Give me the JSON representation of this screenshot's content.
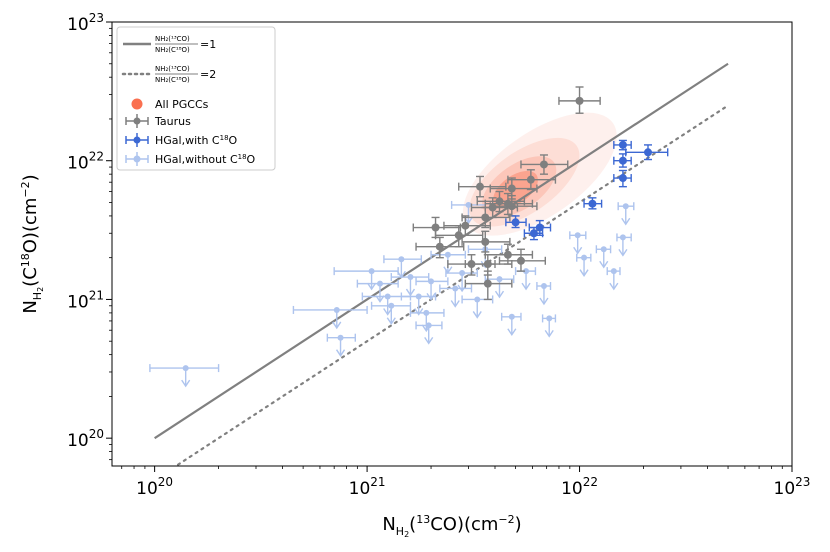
{
  "chart_data": {
    "type": "scatter",
    "x_scale": "log",
    "y_scale": "log",
    "xlim": [
      6.3e+19,
      1e+23
    ],
    "ylim": [
      6.3e+19,
      1e+23
    ],
    "x_ticks": [
      1e+20,
      1e+21,
      1e+22,
      1e+23
    ],
    "y_ticks": [
      1e+20,
      1e+21,
      1e+22,
      1e+23
    ],
    "x_tick_labels": [
      "10^20",
      "10^21",
      "10^22",
      "10^23"
    ],
    "y_tick_labels": [
      "10^20",
      "10^21",
      "10^22",
      "10^23"
    ],
    "xlabel": {
      "main": "N",
      "sub": "H",
      "subsub": "2",
      "rest": "(",
      "sup_iso": "13",
      "after_iso": "CO)(cm",
      "sup_exp": "−2",
      "end": ")"
    },
    "ylabel": {
      "main": "N",
      "sub": "H",
      "subsub": "2",
      "rest": "(C",
      "sup_iso": "18",
      "after_iso": "O)(cm",
      "sup_exp": "−2",
      "end": ")"
    },
    "legend_position": "upper-left",
    "legend": [
      {
        "id": "ratio1",
        "kind": "line-solid",
        "lhs_num": "N_H2(13CO)",
        "lhs_den": "N_H2(C18O)",
        "num_label": "NH₂(¹³CO)",
        "den_label": "NH₂(C¹⁸O)",
        "rhs": "=1"
      },
      {
        "id": "ratio2",
        "kind": "line-dotted",
        "lhs_num": "N_H2(13CO)",
        "lhs_den": "N_H2(C18O)",
        "num_label": "NH₂(¹³CO)",
        "den_label": "NH₂(C¹⁸O)",
        "rhs": "=2"
      },
      {
        "id": "pgcc",
        "kind": "kde",
        "label": "All PGCCs"
      },
      {
        "id": "taurus",
        "kind": "errorbar",
        "label": "Taurus"
      },
      {
        "id": "hgal_with",
        "kind": "errorbar",
        "label_main": "HGal,with C",
        "label_sup": "18",
        "label_end": "O"
      },
      {
        "id": "hgal_without",
        "kind": "upper-limit",
        "label_main": "HGal,without C",
        "label_sup": "18",
        "label_end": "O"
      }
    ],
    "lines": [
      {
        "name": "ratio1",
        "x": [
          1e+20,
          5e+22
        ],
        "y": [
          1e+20,
          5e+22
        ],
        "style": "solid",
        "color": "#808080"
      },
      {
        "name": "ratio2",
        "x": [
          1e+20,
          5e+22
        ],
        "y": [
          5e+19,
          2.5e+22
        ],
        "style": "dotted",
        "color": "#808080"
      }
    ],
    "series": [
      {
        "name": "taurus",
        "color": "#7f7f7f",
        "points": [
          {
            "x": 1e+22,
            "y": 2.7e+22,
            "xerr": [
              8e+21,
              1.25e+22
            ],
            "yerr": [
              2.2e+22,
              3.4e+22
            ]
          },
          {
            "x": 6.8e+21,
            "y": 9.4e+21,
            "xerr": [
              5.3e+21,
              8.8e+21
            ],
            "yerr": [
              8e+21,
              1.1e+22
            ]
          },
          {
            "x": 5.9e+21,
            "y": 7.3e+21,
            "xerr": [
              4.6e+21,
              7.7e+21
            ],
            "yerr": [
              6.2e+21,
              8.6e+21
            ]
          },
          {
            "x": 4.8e+21,
            "y": 6.3e+21,
            "xerr": [
              3.8e+21,
              6.3e+21
            ],
            "yerr": [
              5.3e+21,
              7.5e+21
            ]
          },
          {
            "x": 3.4e+21,
            "y": 6.5e+21,
            "xerr": [
              2.7e+21,
              4.5e+21
            ],
            "yerr": [
              5.5e+21,
              7.7e+21
            ]
          },
          {
            "x": 4.2e+21,
            "y": 5.1e+21,
            "xerr": [
              3.3e+21,
              5.5e+21
            ],
            "yerr": [
              4.3e+21,
              6e+21
            ]
          },
          {
            "x": 4.6e+21,
            "y": 4.9e+21,
            "xerr": [
              3.6e+21,
              6e+21
            ],
            "yerr": [
              4.1e+21,
              5.8e+21
            ]
          },
          {
            "x": 4.8e+21,
            "y": 4.7e+21,
            "xerr": [
              3.8e+21,
              6.3e+21
            ],
            "yerr": [
              4e+21,
              5.6e+21
            ]
          },
          {
            "x": 3.9e+21,
            "y": 4.6e+21,
            "xerr": [
              3.1e+21,
              5.1e+21
            ],
            "yerr": [
              3.9e+21,
              5.4e+21
            ]
          },
          {
            "x": 3.6e+21,
            "y": 3.9e+21,
            "xerr": [
              2.8e+21,
              4.7e+21
            ],
            "yerr": [
              3.3e+21,
              4.6e+21
            ]
          },
          {
            "x": 2.9e+21,
            "y": 3.4e+21,
            "xerr": [
              2.3e+21,
              3.8e+21
            ],
            "yerr": [
              2.9e+21,
              4e+21
            ]
          },
          {
            "x": 2.1e+21,
            "y": 3.3e+21,
            "xerr": [
              1.65e+21,
              2.75e+21
            ],
            "yerr": [
              2.8e+21,
              3.9e+21
            ]
          },
          {
            "x": 2.2e+21,
            "y": 2.4e+21,
            "xerr": [
              1.7e+21,
              2.85e+21
            ],
            "yerr": [
              2e+21,
              2.8e+21
            ]
          },
          {
            "x": 2.7e+21,
            "y": 2.9e+21,
            "xerr": [
              2.1e+21,
              3.5e+21
            ],
            "yerr": [
              2.4e+21,
              3.4e+21
            ]
          },
          {
            "x": 3.6e+21,
            "y": 2.6e+21,
            "xerr": [
              2.8e+21,
              4.7e+21
            ],
            "yerr": [
              2.2e+21,
              3.1e+21
            ]
          },
          {
            "x": 4.6e+21,
            "y": 2.1e+21,
            "xerr": [
              3.6e+21,
              6e+21
            ],
            "yerr": [
              1.8e+21,
              2.5e+21
            ]
          },
          {
            "x": 5.3e+21,
            "y": 1.9e+21,
            "xerr": [
              4.2e+21,
              6.9e+21
            ],
            "yerr": [
              1.6e+21,
              2.3e+21
            ]
          },
          {
            "x": 3.1e+21,
            "y": 1.8e+21,
            "xerr": [
              2.4e+21,
              4e+21
            ],
            "yerr": [
              1.5e+21,
              2.1e+21
            ]
          },
          {
            "x": 3.7e+21,
            "y": 1.8e+21,
            "xerr": [
              2.9e+21,
              4.8e+21
            ],
            "yerr": [
              1.5e+21,
              2.1e+21
            ]
          },
          {
            "x": 3.7e+21,
            "y": 1.3e+21,
            "xerr": [
              2.9e+21,
              4.8e+21
            ],
            "yerr": [
              1e+21,
              1.6e+21
            ]
          }
        ]
      },
      {
        "name": "hgal_with",
        "color": "#3c68d3",
        "points": [
          {
            "x": 1.6e+22,
            "y": 1.3e+22,
            "xerr": [
              1.45e+22,
              1.75e+22
            ],
            "yerr": [
              1.2e+22,
              1.4e+22
            ]
          },
          {
            "x": 2.1e+22,
            "y": 1.15e+22,
            "xerr": [
              1.65e+22,
              2.6e+22
            ],
            "yerr": [
              1.02e+22,
              1.3e+22
            ]
          },
          {
            "x": 1.6e+22,
            "y": 1e+22,
            "xerr": [
              1.45e+22,
              1.75e+22
            ],
            "yerr": [
              9e+21,
              1.12e+22
            ]
          },
          {
            "x": 1.6e+22,
            "y": 7.5e+21,
            "xerr": [
              1.45e+22,
              1.75e+22
            ],
            "yerr": [
              6.5e+21,
              8.5e+21
            ]
          },
          {
            "x": 1.15e+22,
            "y": 4.9e+21,
            "xerr": [
              1.05e+22,
              1.27e+22
            ],
            "yerr": [
              4.5e+21,
              5.4e+21
            ]
          },
          {
            "x": 6.5e+21,
            "y": 3.3e+21,
            "xerr": [
              5.8e+21,
              7.3e+21
            ],
            "yerr": [
              2.9e+21,
              3.7e+21
            ]
          },
          {
            "x": 6.1e+21,
            "y": 3e+21,
            "xerr": [
              5.5e+21,
              6.7e+21
            ],
            "yerr": [
              2.7e+21,
              3.3e+21
            ]
          },
          {
            "x": 5e+21,
            "y": 3.6e+21,
            "xerr": [
              4.5e+21,
              5.6e+21
            ],
            "yerr": [
              3.3e+21,
              4e+21
            ]
          }
        ]
      },
      {
        "name": "hgal_without",
        "color": "#aec4ee",
        "points": [
          {
            "x": 1.4e+20,
            "y": 3.2e+20,
            "xerr": [
              9.5e+19,
              2e+20
            ]
          },
          {
            "x": 7.5e+20,
            "y": 5.3e+20,
            "xerr": [
              6.5e+20,
              8.8e+20
            ]
          },
          {
            "x": 7.2e+20,
            "y": 8.4e+20,
            "xerr": [
              4.5e+20,
              1e+21
            ]
          },
          {
            "x": 1.05e+21,
            "y": 1.6e+21,
            "xerr": [
              7e+20,
              1.4e+21
            ]
          },
          {
            "x": 1.15e+21,
            "y": 1.3e+21,
            "xerr": [
              9e+20,
              1.4e+21
            ]
          },
          {
            "x": 1.25e+21,
            "y": 1.05e+21,
            "xerr": [
              9.5e+20,
              1.6e+21
            ]
          },
          {
            "x": 1.45e+21,
            "y": 1.95e+21,
            "xerr": [
              1.2e+21,
              1.8e+21
            ]
          },
          {
            "x": 1.3e+21,
            "y": 9e+20,
            "xerr": [
              1.05e+21,
              1.6e+21
            ]
          },
          {
            "x": 1.6e+21,
            "y": 1.45e+21,
            "xerr": [
              1.3e+21,
              1.95e+21
            ]
          },
          {
            "x": 1.75e+21,
            "y": 1.05e+21,
            "xerr": [
              1.45e+21,
              2.1e+21
            ]
          },
          {
            "x": 1.9e+21,
            "y": 8e+20,
            "xerr": [
              1.6e+21,
              2.3e+21
            ]
          },
          {
            "x": 1.95e+21,
            "y": 6.5e+20,
            "xerr": [
              1.7e+21,
              2.25e+21
            ]
          },
          {
            "x": 2e+21,
            "y": 1.35e+21,
            "xerr": [
              1.7e+21,
              2.4e+21
            ]
          },
          {
            "x": 2.4e+21,
            "y": 2.1e+21,
            "xerr": [
              2e+21,
              2.9e+21
            ]
          },
          {
            "x": 2.6e+21,
            "y": 1.2e+21,
            "xerr": [
              2.2e+21,
              3.1e+21
            ]
          },
          {
            "x": 2.8e+21,
            "y": 1.55e+21,
            "xerr": [
              2.35e+21,
              3.3e+21
            ]
          },
          {
            "x": 3e+21,
            "y": 4.8e+21,
            "xerr": [
              2.5e+21,
              3.6e+21
            ]
          },
          {
            "x": 3.3e+21,
            "y": 1e+21,
            "xerr": [
              2.8e+21,
              3.9e+21
            ]
          },
          {
            "x": 3.6e+21,
            "y": 2.3e+21,
            "xerr": [
              3e+21,
              4.3e+21
            ]
          },
          {
            "x": 4.2e+21,
            "y": 1.4e+21,
            "xerr": [
              3.6e+21,
              4.9e+21
            ]
          },
          {
            "x": 4.8e+21,
            "y": 7.5e+20,
            "xerr": [
              4.3e+21,
              5.3e+21
            ]
          },
          {
            "x": 5.6e+21,
            "y": 1.6e+21,
            "xerr": [
              5e+21,
              6.2e+21
            ]
          },
          {
            "x": 6.8e+21,
            "y": 1.25e+21,
            "xerr": [
              6.3e+21,
              7.3e+21
            ]
          },
          {
            "x": 7.2e+21,
            "y": 7.3e+20,
            "xerr": [
              6.7e+21,
              7.7e+21
            ]
          },
          {
            "x": 9.8e+21,
            "y": 2.9e+21,
            "xerr": [
              9e+21,
              1.07e+22
            ]
          },
          {
            "x": 1.05e+22,
            "y": 2e+21,
            "xerr": [
              9.7e+21,
              1.13e+22
            ]
          },
          {
            "x": 1.3e+22,
            "y": 2.3e+21,
            "xerr": [
              1.2e+22,
              1.4e+22
            ]
          },
          {
            "x": 1.45e+22,
            "y": 1.6e+21,
            "xerr": [
              1.35e+22,
              1.55e+22
            ]
          },
          {
            "x": 1.6e+22,
            "y": 2.8e+21,
            "xerr": [
              1.5e+22,
              1.75e+22
            ]
          },
          {
            "x": 1.65e+22,
            "y": 4.7e+21,
            "xerr": [
              1.52e+22,
              1.8e+22
            ]
          }
        ]
      }
    ],
    "kde": {
      "name": "pgcc",
      "color": "#fa7050",
      "blobs": [
        {
          "cx": 6.5e+21,
          "cy": 8e+21,
          "sx": 0.42,
          "sy": 0.3,
          "rot": 35,
          "opacity": 0.1
        },
        {
          "cx": 5.5e+21,
          "cy": 7e+21,
          "sx": 0.3,
          "sy": 0.22,
          "rot": 35,
          "opacity": 0.14
        },
        {
          "cx": 5.2e+21,
          "cy": 6.5e+21,
          "sx": 0.2,
          "sy": 0.16,
          "rot": 35,
          "opacity": 0.22
        },
        {
          "cx": 5e+21,
          "cy": 6.2e+21,
          "sx": 0.12,
          "sy": 0.1,
          "rot": 35,
          "opacity": 0.4
        }
      ]
    }
  }
}
